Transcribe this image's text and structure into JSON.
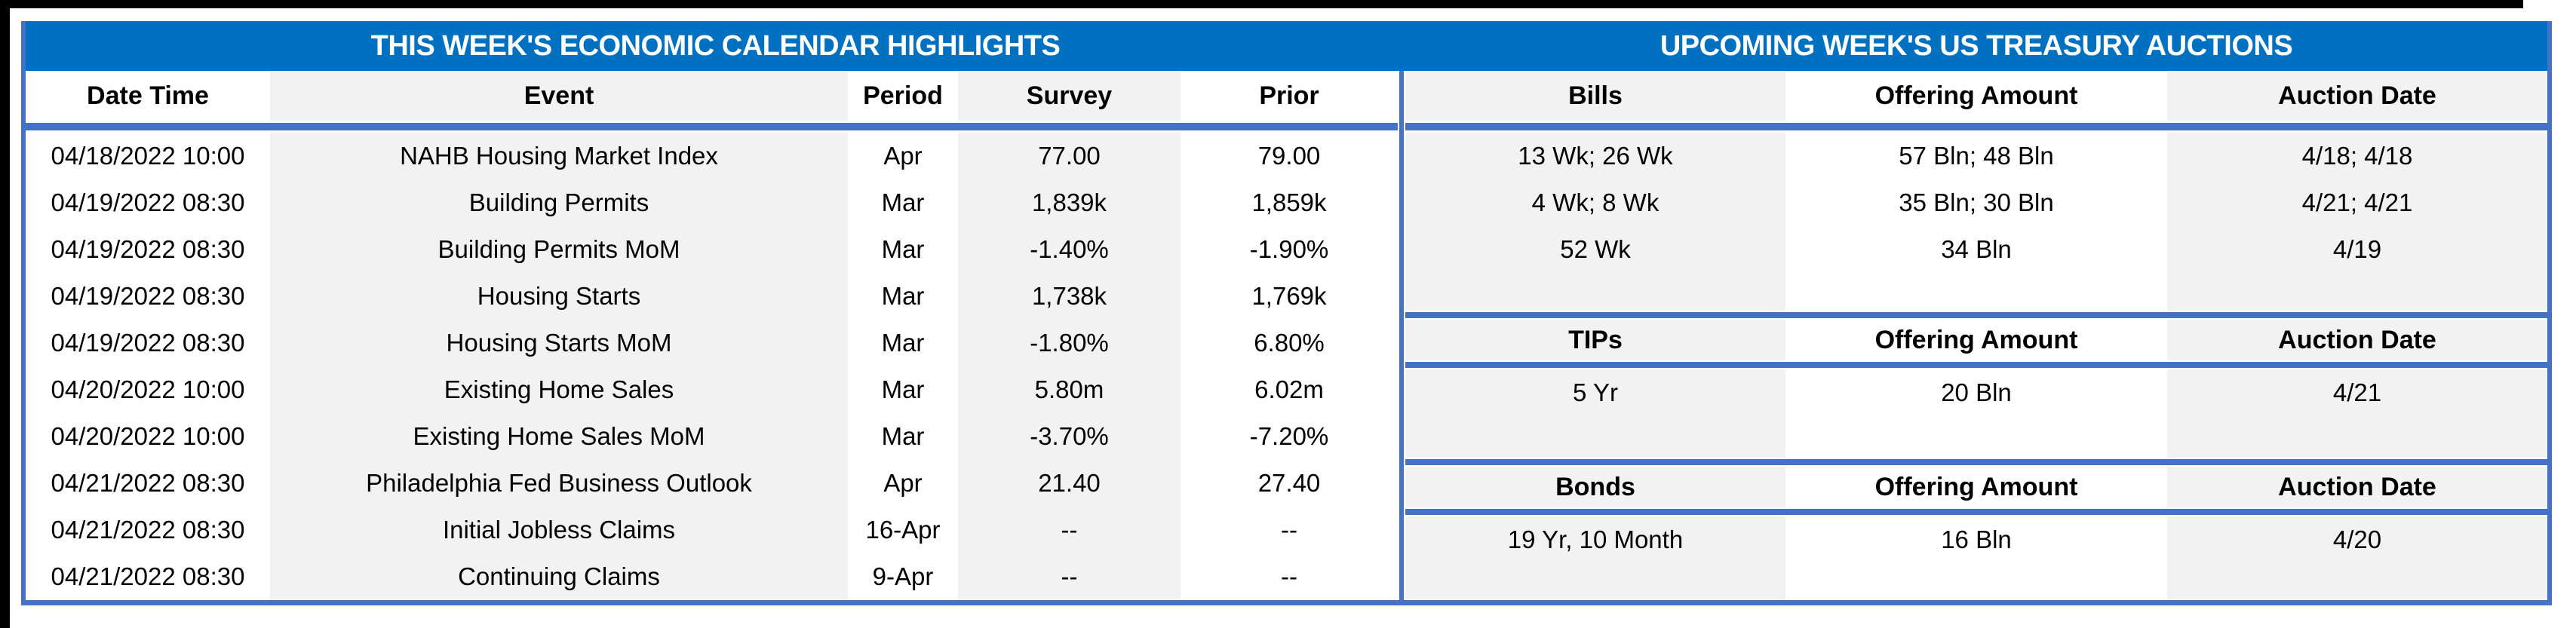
{
  "colors": {
    "title_band": "#0070C0",
    "table_border": "#4472C4",
    "stripe_gray": "#F2F2F2",
    "frame_black": "#000000",
    "title_text": "#FFFFFF",
    "body_text": "#000000"
  },
  "left_table": {
    "title": "THIS WEEK'S ECONOMIC CALENDAR HIGHLIGHTS",
    "columns": [
      "Date Time",
      "Event",
      "Period",
      "Survey",
      "Prior"
    ],
    "rows": [
      [
        "04/18/2022 10:00",
        "NAHB Housing Market Index",
        "Apr",
        "77.00",
        "79.00"
      ],
      [
        "04/19/2022 08:30",
        "Building Permits",
        "Mar",
        "1,839k",
        "1,859k"
      ],
      [
        "04/19/2022 08:30",
        "Building Permits MoM",
        "Mar",
        "-1.40%",
        "-1.90%"
      ],
      [
        "04/19/2022 08:30",
        "Housing Starts",
        "Mar",
        "1,738k",
        "1,769k"
      ],
      [
        "04/19/2022 08:30",
        "Housing Starts MoM",
        "Mar",
        "-1.80%",
        "6.80%"
      ],
      [
        "04/20/2022 10:00",
        "Existing Home Sales",
        "Mar",
        "5.80m",
        "6.02m"
      ],
      [
        "04/20/2022 10:00",
        "Existing Home Sales MoM",
        "Mar",
        "-3.70%",
        "-7.20%"
      ],
      [
        "04/21/2022 08:30",
        "Philadelphia Fed Business Outlook",
        "Apr",
        "21.40",
        "27.40"
      ],
      [
        "04/21/2022 08:30",
        "Initial Jobless Claims",
        "16-Apr",
        "--",
        "--"
      ],
      [
        "04/21/2022 08:30",
        "Continuing Claims",
        "9-Apr",
        "--",
        "--"
      ]
    ]
  },
  "right_table": {
    "title": "UPCOMING WEEK'S US TREASURY AUCTIONS",
    "sections": [
      {
        "headers": [
          "Bills",
          "Offering Amount",
          "Auction Date"
        ],
        "rows": [
          [
            "13 Wk; 26 Wk",
            "57 Bln; 48 Bln",
            "4/18; 4/18"
          ],
          [
            "4 Wk; 8 Wk",
            "35 Bln; 30 Bln",
            "4/21; 4/21"
          ],
          [
            "52 Wk",
            "34 Bln",
            "4/19"
          ]
        ]
      },
      {
        "headers": [
          "TIPs",
          "Offering Amount",
          "Auction Date"
        ],
        "rows": [
          [
            "5 Yr",
            "20 Bln",
            "4/21"
          ]
        ]
      },
      {
        "headers": [
          "Bonds",
          "Offering Amount",
          "Auction Date"
        ],
        "rows": [
          [
            "19 Yr, 10 Month",
            "16 Bln",
            "4/20"
          ]
        ]
      }
    ]
  }
}
